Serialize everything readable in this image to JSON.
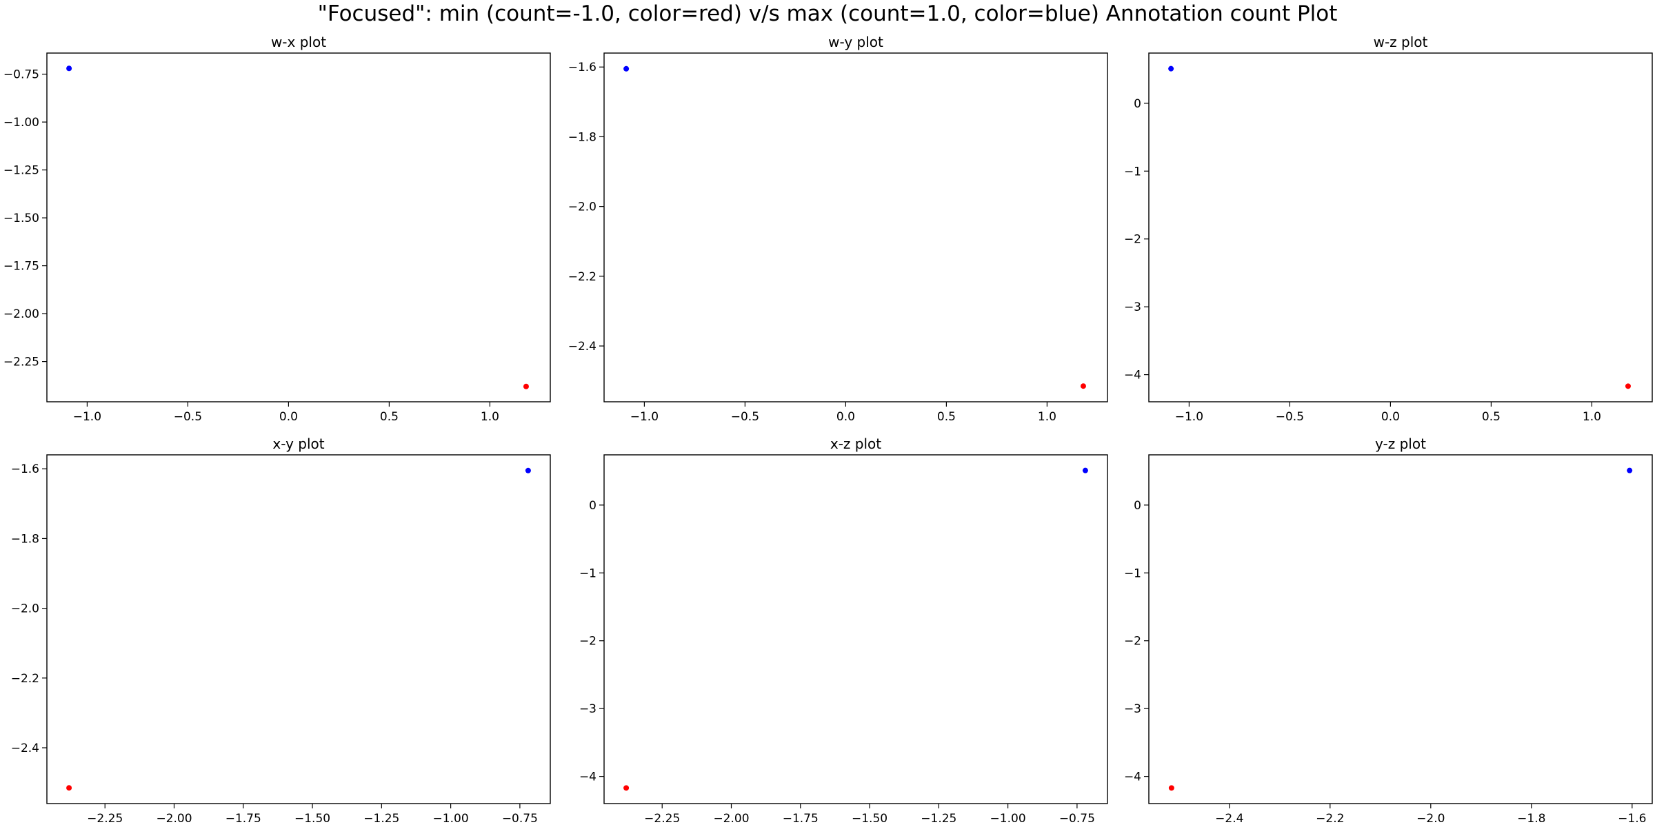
{
  "figure": {
    "title": "\"Focused\": min (count=-1.0, color=red) v/s max (count=1.0, color=blue) Annotation count Plot"
  },
  "colors": {
    "min": "#ff0000",
    "max": "#0000ff"
  },
  "chart_data": [
    {
      "type": "scatter",
      "title": "w-x plot",
      "xlim": [
        -1.2,
        1.3
      ],
      "ylim": [
        -2.46,
        -0.64
      ],
      "xticks": [
        -1.0,
        -0.5,
        0.0,
        0.5,
        1.0
      ],
      "yticks": [
        -2.25,
        -2.0,
        -1.75,
        -1.5,
        -1.25,
        -1.0,
        -0.75
      ],
      "xtick_labels": [
        "−1.0",
        "−0.5",
        "0.0",
        "0.5",
        "1.0"
      ],
      "ytick_labels": [
        "−2.25",
        "−2.00",
        "−1.75",
        "−1.50",
        "−1.25",
        "−1.00",
        "−0.75"
      ],
      "points": [
        {
          "x": -1.09,
          "y": -0.72,
          "color": "#0000ff"
        },
        {
          "x": 1.18,
          "y": -2.38,
          "color": "#ff0000"
        }
      ]
    },
    {
      "type": "scatter",
      "title": "w-y plot",
      "xlim": [
        -1.2,
        1.3
      ],
      "ylim": [
        -2.56,
        -1.56
      ],
      "xticks": [
        -1.0,
        -0.5,
        0.0,
        0.5,
        1.0
      ],
      "yticks": [
        -2.4,
        -2.2,
        -2.0,
        -1.8,
        -1.6
      ],
      "xtick_labels": [
        "−1.0",
        "−0.5",
        "0.0",
        "0.5",
        "1.0"
      ],
      "ytick_labels": [
        "−2.4",
        "−2.2",
        "−2.0",
        "−1.8",
        "−1.6"
      ],
      "points": [
        {
          "x": -1.09,
          "y": -1.605,
          "color": "#0000ff"
        },
        {
          "x": 1.18,
          "y": -2.515,
          "color": "#ff0000"
        }
      ]
    },
    {
      "type": "scatter",
      "title": "w-z plot",
      "xlim": [
        -1.2,
        1.3
      ],
      "ylim": [
        -4.4,
        0.74
      ],
      "xticks": [
        -1.0,
        -0.5,
        0.0,
        0.5,
        1.0
      ],
      "yticks": [
        -4,
        -3,
        -2,
        -1,
        0
      ],
      "xtick_labels": [
        "−1.0",
        "−0.5",
        "0.0",
        "0.5",
        "1.0"
      ],
      "ytick_labels": [
        "−4",
        "−3",
        "−2",
        "−1",
        "0"
      ],
      "points": [
        {
          "x": -1.09,
          "y": 0.51,
          "color": "#0000ff"
        },
        {
          "x": 1.18,
          "y": -4.17,
          "color": "#ff0000"
        }
      ]
    },
    {
      "type": "scatter",
      "title": "x-y plot",
      "xlim": [
        -2.46,
        -0.64
      ],
      "ylim": [
        -2.56,
        -1.56
      ],
      "xticks": [
        -2.25,
        -2.0,
        -1.75,
        -1.5,
        -1.25,
        -1.0,
        -0.75
      ],
      "yticks": [
        -2.4,
        -2.2,
        -2.0,
        -1.8,
        -1.6
      ],
      "xtick_labels": [
        "−2.25",
        "−2.00",
        "−1.75",
        "−1.50",
        "−1.25",
        "−1.00",
        "−0.75"
      ],
      "ytick_labels": [
        "−2.4",
        "−2.2",
        "−2.0",
        "−1.8",
        "−1.6"
      ],
      "points": [
        {
          "x": -0.72,
          "y": -1.605,
          "color": "#0000ff"
        },
        {
          "x": -2.38,
          "y": -2.515,
          "color": "#ff0000"
        }
      ]
    },
    {
      "type": "scatter",
      "title": "x-z plot",
      "xlim": [
        -2.46,
        -0.64
      ],
      "ylim": [
        -4.4,
        0.74
      ],
      "xticks": [
        -2.25,
        -2.0,
        -1.75,
        -1.5,
        -1.25,
        -1.0,
        -0.75
      ],
      "yticks": [
        -4,
        -3,
        -2,
        -1,
        0
      ],
      "xtick_labels": [
        "−2.25",
        "−2.00",
        "−1.75",
        "−1.50",
        "−1.25",
        "−1.00",
        "−0.75"
      ],
      "ytick_labels": [
        "−4",
        "−3",
        "−2",
        "−1",
        "0"
      ],
      "points": [
        {
          "x": -0.72,
          "y": 0.51,
          "color": "#0000ff"
        },
        {
          "x": -2.38,
          "y": -4.17,
          "color": "#ff0000"
        }
      ]
    },
    {
      "type": "scatter",
      "title": "y-z plot",
      "xlim": [
        -2.56,
        -1.56
      ],
      "ylim": [
        -4.4,
        0.74
      ],
      "xticks": [
        -2.4,
        -2.2,
        -2.0,
        -1.8,
        -1.6
      ],
      "yticks": [
        -4,
        -3,
        -2,
        -1,
        0
      ],
      "xtick_labels": [
        "−2.4",
        "−2.2",
        "−2.0",
        "−1.8",
        "−1.6"
      ],
      "ytick_labels": [
        "−4",
        "−3",
        "−2",
        "−1",
        "0"
      ],
      "points": [
        {
          "x": -1.605,
          "y": 0.51,
          "color": "#0000ff"
        },
        {
          "x": -2.515,
          "y": -4.17,
          "color": "#ff0000"
        }
      ]
    }
  ]
}
